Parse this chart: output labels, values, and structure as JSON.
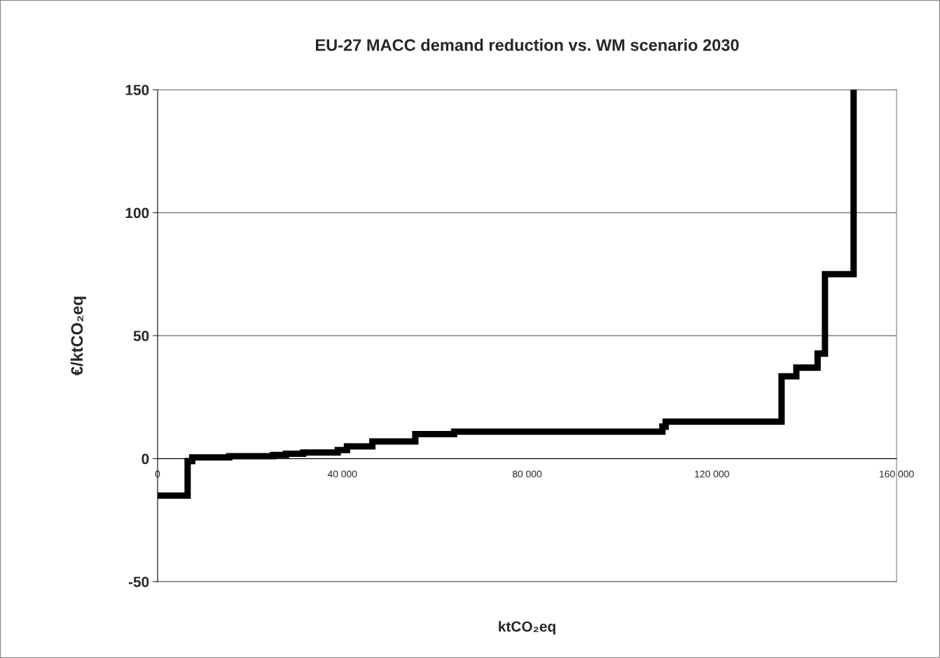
{
  "chart_data": {
    "type": "step",
    "title": "EU-27 MACC demand reduction vs. WM scenario 2030",
    "xlabel": "ktCO₂eq",
    "ylabel": "€/ktCO₂eq",
    "x": [
      0,
      6500,
      7500,
      15500,
      25000,
      27800,
      31500,
      39000,
      41000,
      46500,
      55800,
      64200,
      109300,
      110000,
      135100,
      138300,
      142900,
      144500,
      150700,
      150700
    ],
    "series": [
      {
        "color": "#000000",
        "values": [
          -15,
          -1,
          0.5,
          1,
          1.5,
          2,
          2.5,
          3.5,
          5,
          7,
          10,
          11,
          13,
          15,
          33.5,
          37,
          42.7,
          75,
          150,
          150
        ]
      }
    ],
    "xlim": [
      0,
      160000
    ],
    "ylim": [
      -50,
      150
    ],
    "xticks": [
      0,
      {
        "value": 40000,
        "label": "40 000"
      },
      {
        "value": 80000,
        "label": "80 000"
      },
      {
        "value": 120000,
        "label": "120 000"
      },
      {
        "value": 160000,
        "label": "160 000"
      }
    ],
    "yticks": [
      -50,
      0,
      50,
      100,
      150
    ],
    "grid": "y",
    "legend": false,
    "marker": "none",
    "line_style": "solid"
  }
}
